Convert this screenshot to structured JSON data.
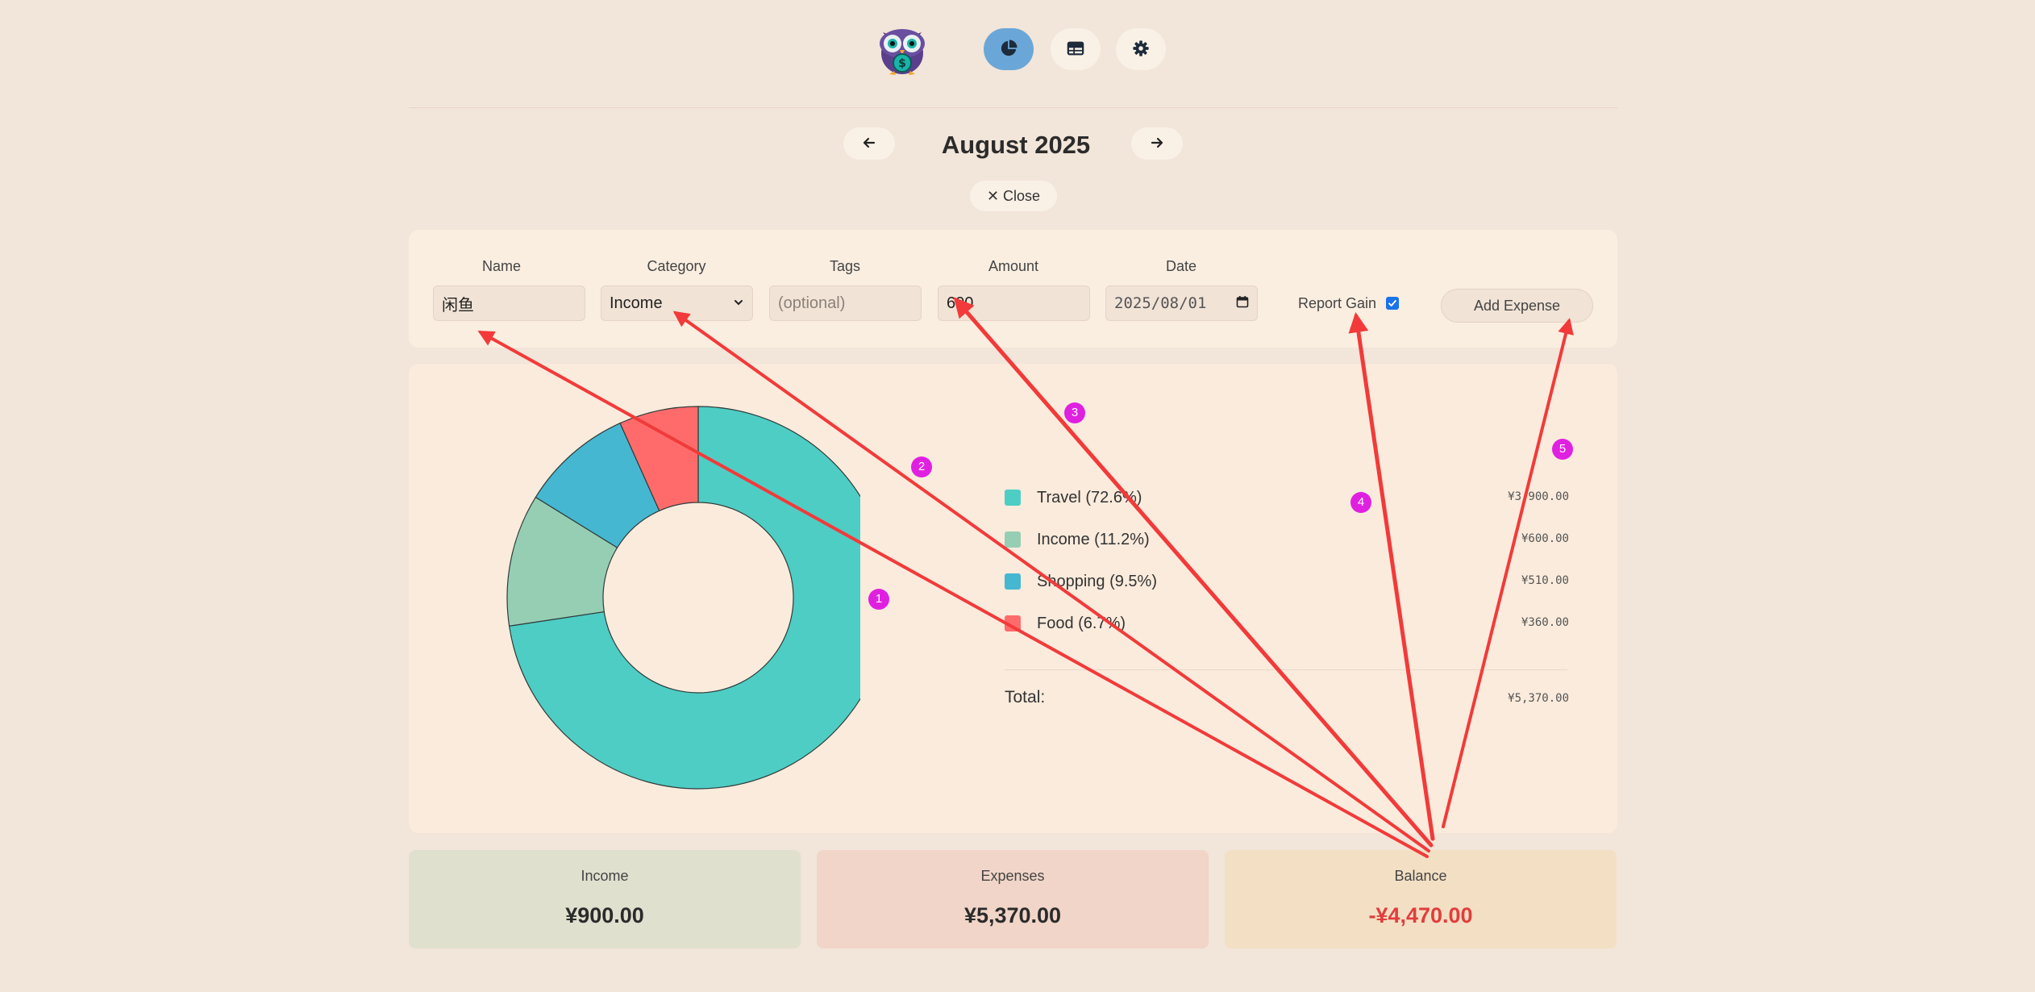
{
  "nav": {
    "items": [
      {
        "icon": "pie-chart-icon",
        "active": true
      },
      {
        "icon": "table-icon",
        "active": false
      },
      {
        "icon": "gear-icon",
        "active": false
      }
    ]
  },
  "month_nav": {
    "title": "August 2025",
    "close_label": "✕ Close"
  },
  "form": {
    "name_label": "Name",
    "name_value": "闲鱼",
    "category_label": "Category",
    "category_value": "Income",
    "tags_label": "Tags",
    "tags_placeholder": "(optional)",
    "amount_label": "Amount",
    "amount_value": "600",
    "date_label": "Date",
    "date_value": "2025/08/01",
    "report_gain_label": "Report Gain",
    "report_gain_checked": true,
    "add_button_label": "Add Expense"
  },
  "chart_data": {
    "type": "pie",
    "categories": [
      "Travel",
      "Income",
      "Shopping",
      "Food"
    ],
    "values": [
      3900,
      600,
      510,
      360
    ],
    "percent_labels": [
      "Travel (72.6%)",
      "Income (11.2%)",
      "Shopping (9.5%)",
      "Food (6.7%)"
    ],
    "amounts": [
      "¥3,900.00",
      "¥600.00",
      "¥510.00",
      "¥360.00"
    ],
    "colors": [
      "#4ecdc4",
      "#96ceb4",
      "#45b7d1",
      "#ff6b6b"
    ],
    "total_label": "Total:",
    "total_amount": "¥5,370.00"
  },
  "summary": {
    "income_label": "Income",
    "income_value": "¥900.00",
    "expenses_label": "Expenses",
    "expenses_value": "¥5,370.00",
    "balance_label": "Balance",
    "balance_value": "-¥4,470.00"
  },
  "annotations": {
    "markers": [
      "1",
      "2",
      "3",
      "4",
      "5"
    ],
    "arrow_color": "#f23a3a",
    "marker_color": "#e020e0"
  }
}
